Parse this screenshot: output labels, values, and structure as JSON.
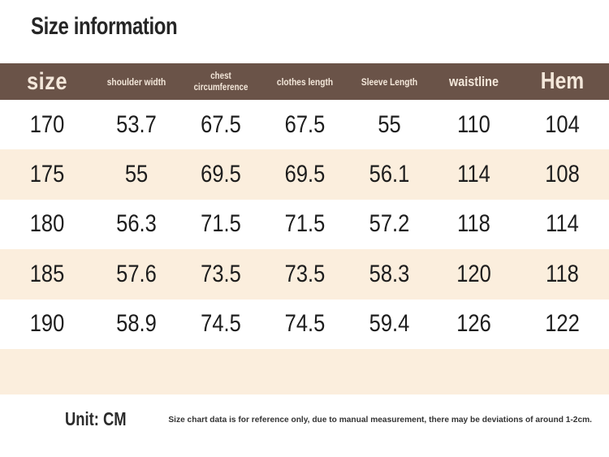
{
  "page": {
    "title": "Size information"
  },
  "table": {
    "columns": [
      {
        "id": "size",
        "label": "size"
      },
      {
        "id": "shoulder-width",
        "label": "shoulder width"
      },
      {
        "id": "chest-circumference",
        "label": "chest circumference"
      },
      {
        "id": "clothes-length",
        "label": "clothes length"
      },
      {
        "id": "sleeve-length",
        "label": "Sleeve Length"
      },
      {
        "id": "waistline",
        "label": "waistline"
      },
      {
        "id": "hem",
        "label": "Hem"
      }
    ],
    "rows": [
      [
        "170",
        "53.7",
        "67.5",
        "67.5",
        "55",
        "110",
        "104"
      ],
      [
        "175",
        "55",
        "69.5",
        "69.5",
        "56.1",
        "114",
        "108"
      ],
      [
        "180",
        "56.3",
        "71.5",
        "71.5",
        "57.2",
        "118",
        "114"
      ],
      [
        "185",
        "57.6",
        "73.5",
        "73.5",
        "58.3",
        "120",
        "118"
      ],
      [
        "190",
        "58.9",
        "74.5",
        "74.5",
        "59.4",
        "126",
        "122"
      ]
    ]
  },
  "footer": {
    "unit_label": "Unit: CM",
    "disclaimer": "Size chart data is for reference only, due to manual measurement, there may be deviations of around 1-2cm."
  },
  "colors": {
    "header_bg": "#6a5348",
    "header_text": "#f3e7da",
    "row_bg": "#ffffff",
    "row_alt_bg": "#fbeedd",
    "text": "#1d1d1d"
  }
}
